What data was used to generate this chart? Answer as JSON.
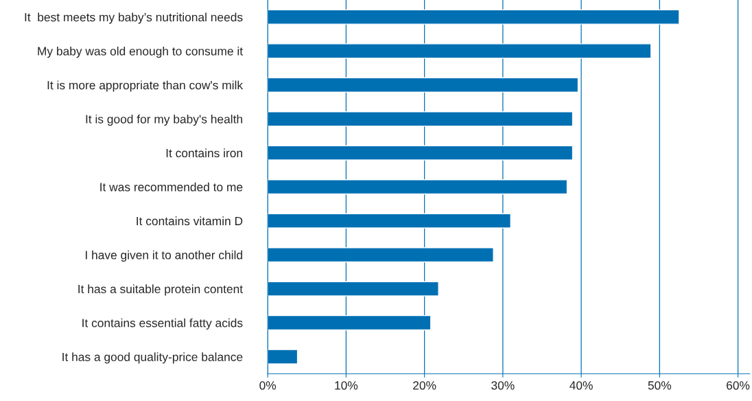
{
  "chart_data": {
    "type": "bar",
    "orientation": "horizontal",
    "categories": [
      "It  best meets my baby’s nutritional needs",
      "My baby was old enough to consume it",
      "It is more appropriate than cow's milk",
      "It is good for my baby's health",
      "It contains iron",
      "It was recommended to me",
      "It contains vitamin D",
      "I have given it to another child",
      "It has a suitable protein content",
      "It contains essential fatty acids",
      "It has a good quality-price balance"
    ],
    "values": [
      52.5,
      48.9,
      39.6,
      38.9,
      38.9,
      38.2,
      31.0,
      28.8,
      21.8,
      20.8,
      3.8
    ],
    "color": "#0070b3",
    "xlim": [
      0,
      61.5
    ],
    "xticks": [
      {
        "value": 0,
        "label": "0%"
      },
      {
        "value": 10,
        "label": "10%"
      },
      {
        "value": 20,
        "label": "20%"
      },
      {
        "value": 30,
        "label": "30%"
      },
      {
        "value": 40,
        "label": "40%"
      },
      {
        "value": 50,
        "label": "50%"
      },
      {
        "value": 60,
        "label": "60%"
      }
    ],
    "grid": "x"
  }
}
